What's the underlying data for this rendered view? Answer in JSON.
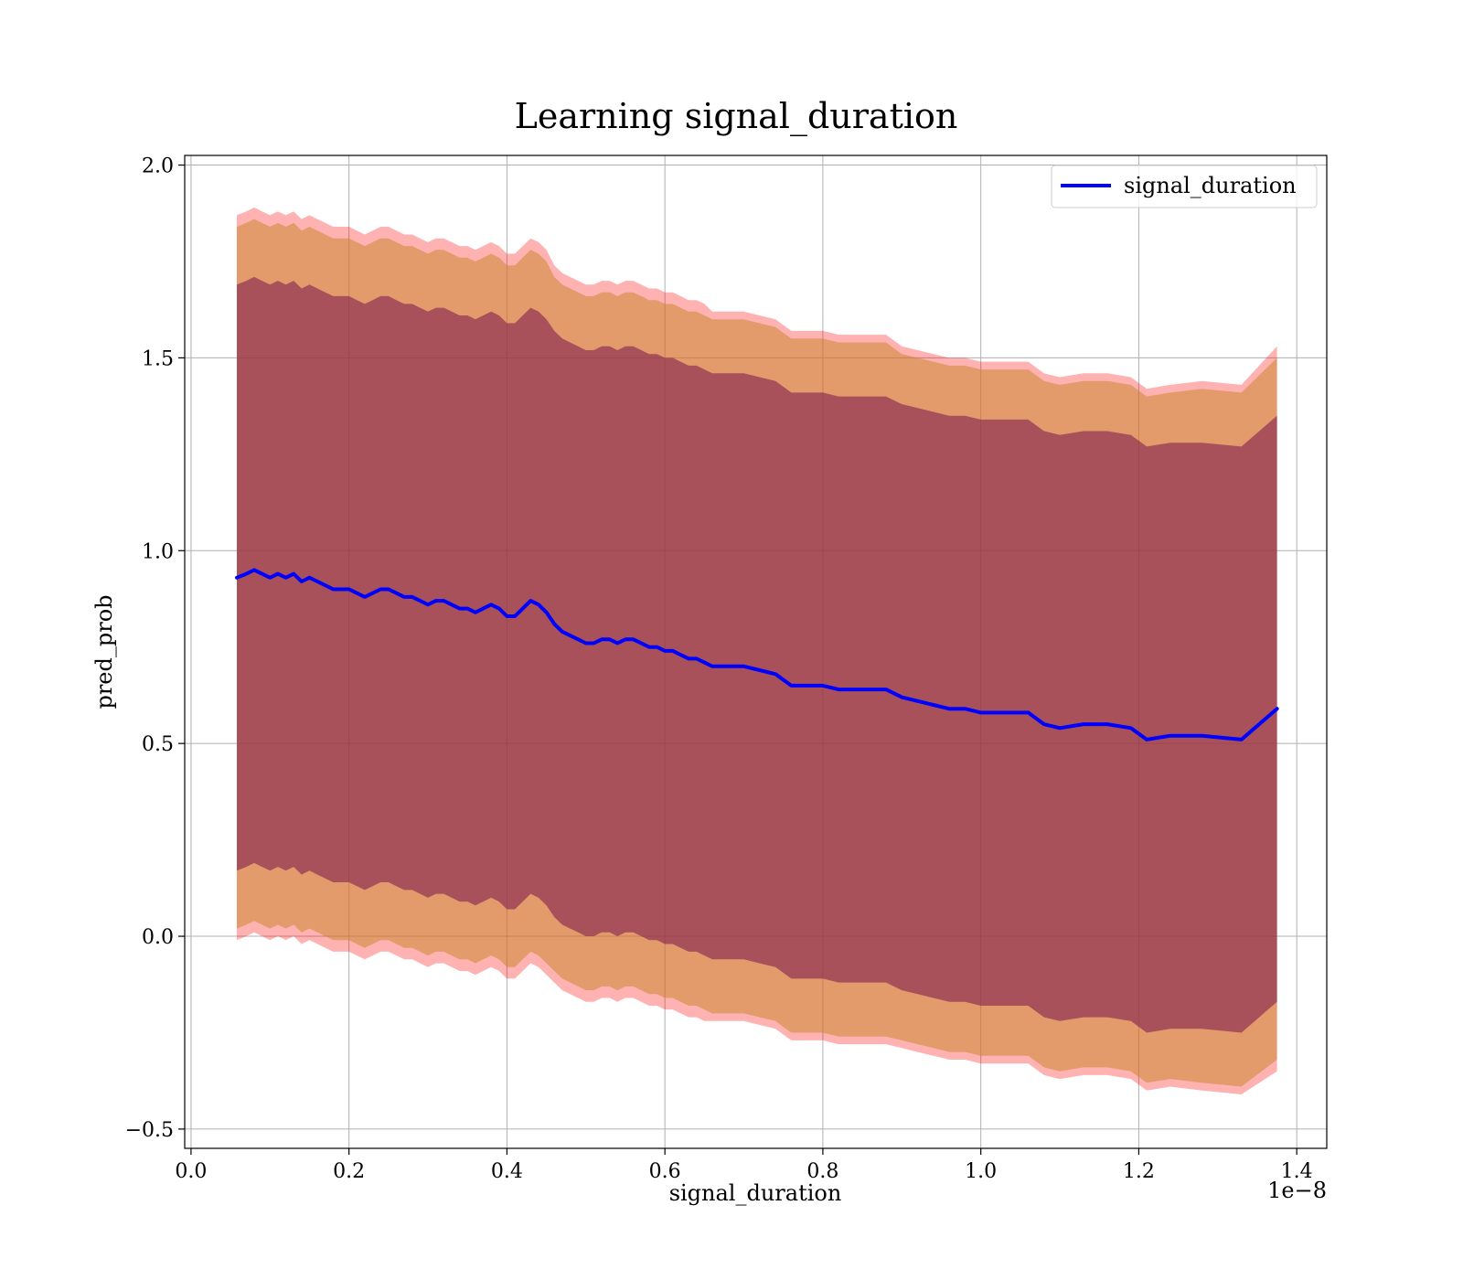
{
  "chart_data": {
    "type": "line",
    "title": "Learning signal_duration",
    "xlabel": "signal_duration",
    "ylabel": "pred_prob",
    "x_offset_label": "1e−8",
    "xlim": [
      -0.008,
      1.438
    ],
    "ylim": [
      -0.55,
      2.025
    ],
    "xticks": [
      0.0,
      0.2,
      0.4,
      0.6,
      0.8,
      1.0,
      1.2,
      1.4
    ],
    "xtick_labels": [
      "0.0",
      "0.2",
      "0.4",
      "0.6",
      "0.8",
      "1.0",
      "1.2",
      "1.4"
    ],
    "yticks": [
      -0.5,
      0.0,
      0.5,
      1.0,
      1.5,
      2.0
    ],
    "ytick_labels": [
      "−0.5",
      "0.0",
      "0.5",
      "1.0",
      "1.5",
      "2.0"
    ],
    "grid": true,
    "legend": "top-right",
    "colors": {
      "line": "#0000ff",
      "band_outer": "#ff0000",
      "band_middle": "#cc8833",
      "band_inner": "#802050"
    },
    "x": [
      0.058,
      0.07,
      0.08,
      0.09,
      0.1,
      0.11,
      0.12,
      0.13,
      0.14,
      0.15,
      0.16,
      0.17,
      0.18,
      0.19,
      0.2,
      0.21,
      0.22,
      0.23,
      0.24,
      0.25,
      0.26,
      0.27,
      0.28,
      0.29,
      0.3,
      0.31,
      0.32,
      0.33,
      0.34,
      0.35,
      0.36,
      0.37,
      0.38,
      0.39,
      0.4,
      0.41,
      0.42,
      0.43,
      0.44,
      0.45,
      0.46,
      0.47,
      0.48,
      0.49,
      0.5,
      0.51,
      0.52,
      0.53,
      0.54,
      0.55,
      0.56,
      0.57,
      0.58,
      0.59,
      0.6,
      0.61,
      0.62,
      0.63,
      0.64,
      0.65,
      0.66,
      0.67,
      0.68,
      0.69,
      0.7,
      0.72,
      0.74,
      0.76,
      0.78,
      0.8,
      0.82,
      0.84,
      0.86,
      0.88,
      0.9,
      0.92,
      0.94,
      0.96,
      0.98,
      1.0,
      1.02,
      1.04,
      1.06,
      1.08,
      1.1,
      1.13,
      1.16,
      1.19,
      1.21,
      1.24,
      1.28,
      1.33,
      1.375
    ],
    "series": [
      {
        "name": "signal_duration",
        "role": "mean",
        "values": [
          0.93,
          0.94,
          0.95,
          0.94,
          0.93,
          0.94,
          0.93,
          0.94,
          0.92,
          0.93,
          0.92,
          0.91,
          0.9,
          0.9,
          0.9,
          0.89,
          0.88,
          0.89,
          0.9,
          0.9,
          0.89,
          0.88,
          0.88,
          0.87,
          0.86,
          0.87,
          0.87,
          0.86,
          0.85,
          0.85,
          0.84,
          0.85,
          0.86,
          0.85,
          0.83,
          0.83,
          0.85,
          0.87,
          0.86,
          0.84,
          0.81,
          0.79,
          0.78,
          0.77,
          0.76,
          0.76,
          0.77,
          0.77,
          0.76,
          0.77,
          0.77,
          0.76,
          0.75,
          0.75,
          0.74,
          0.74,
          0.73,
          0.72,
          0.72,
          0.71,
          0.7,
          0.7,
          0.7,
          0.7,
          0.7,
          0.69,
          0.68,
          0.65,
          0.65,
          0.65,
          0.64,
          0.64,
          0.64,
          0.64,
          0.62,
          0.61,
          0.6,
          0.59,
          0.59,
          0.58,
          0.58,
          0.58,
          0.58,
          0.55,
          0.54,
          0.55,
          0.55,
          0.54,
          0.51,
          0.52,
          0.52,
          0.51,
          0.59
        ]
      }
    ],
    "bands": [
      {
        "role": "outer",
        "half_width": [
          0.94,
          0.94,
          0.94,
          0.94,
          0.94,
          0.94,
          0.94,
          0.94,
          0.94,
          0.94,
          0.94,
          0.94,
          0.94,
          0.94,
          0.94,
          0.94,
          0.94,
          0.94,
          0.94,
          0.94,
          0.94,
          0.94,
          0.94,
          0.94,
          0.94,
          0.94,
          0.94,
          0.94,
          0.94,
          0.94,
          0.94,
          0.94,
          0.94,
          0.94,
          0.94,
          0.94,
          0.94,
          0.94,
          0.94,
          0.94,
          0.93,
          0.93,
          0.93,
          0.93,
          0.93,
          0.93,
          0.93,
          0.93,
          0.93,
          0.93,
          0.93,
          0.93,
          0.93,
          0.93,
          0.93,
          0.93,
          0.93,
          0.93,
          0.93,
          0.93,
          0.92,
          0.92,
          0.92,
          0.92,
          0.92,
          0.92,
          0.92,
          0.92,
          0.92,
          0.92,
          0.92,
          0.92,
          0.92,
          0.92,
          0.91,
          0.91,
          0.91,
          0.91,
          0.91,
          0.91,
          0.91,
          0.91,
          0.91,
          0.91,
          0.91,
          0.91,
          0.91,
          0.91,
          0.91,
          0.91,
          0.92,
          0.92,
          0.94
        ]
      },
      {
        "role": "middle",
        "half_width": [
          0.91,
          0.91,
          0.91,
          0.91,
          0.91,
          0.91,
          0.91,
          0.91,
          0.91,
          0.91,
          0.91,
          0.91,
          0.91,
          0.91,
          0.91,
          0.91,
          0.91,
          0.91,
          0.91,
          0.91,
          0.91,
          0.91,
          0.91,
          0.91,
          0.91,
          0.91,
          0.91,
          0.91,
          0.91,
          0.91,
          0.91,
          0.91,
          0.91,
          0.91,
          0.91,
          0.91,
          0.91,
          0.91,
          0.91,
          0.91,
          0.9,
          0.9,
          0.9,
          0.9,
          0.9,
          0.9,
          0.9,
          0.9,
          0.9,
          0.9,
          0.9,
          0.9,
          0.9,
          0.9,
          0.9,
          0.9,
          0.9,
          0.9,
          0.9,
          0.9,
          0.9,
          0.9,
          0.9,
          0.9,
          0.9,
          0.9,
          0.9,
          0.9,
          0.9,
          0.9,
          0.9,
          0.9,
          0.9,
          0.9,
          0.89,
          0.89,
          0.89,
          0.89,
          0.89,
          0.89,
          0.89,
          0.89,
          0.89,
          0.89,
          0.89,
          0.89,
          0.89,
          0.89,
          0.89,
          0.89,
          0.9,
          0.9,
          0.91
        ]
      },
      {
        "role": "inner",
        "half_width": [
          0.76,
          0.76,
          0.76,
          0.76,
          0.76,
          0.76,
          0.76,
          0.76,
          0.76,
          0.76,
          0.76,
          0.76,
          0.76,
          0.76,
          0.76,
          0.76,
          0.76,
          0.76,
          0.76,
          0.76,
          0.76,
          0.76,
          0.76,
          0.76,
          0.76,
          0.76,
          0.76,
          0.76,
          0.76,
          0.76,
          0.76,
          0.76,
          0.76,
          0.76,
          0.76,
          0.76,
          0.76,
          0.76,
          0.76,
          0.76,
          0.76,
          0.76,
          0.76,
          0.76,
          0.76,
          0.76,
          0.76,
          0.76,
          0.76,
          0.76,
          0.76,
          0.76,
          0.76,
          0.76,
          0.76,
          0.76,
          0.76,
          0.76,
          0.76,
          0.76,
          0.76,
          0.76,
          0.76,
          0.76,
          0.76,
          0.76,
          0.76,
          0.76,
          0.76,
          0.76,
          0.76,
          0.76,
          0.76,
          0.76,
          0.76,
          0.76,
          0.76,
          0.76,
          0.76,
          0.76,
          0.76,
          0.76,
          0.76,
          0.76,
          0.76,
          0.76,
          0.76,
          0.76,
          0.76,
          0.76,
          0.76,
          0.76,
          0.76
        ]
      }
    ]
  }
}
